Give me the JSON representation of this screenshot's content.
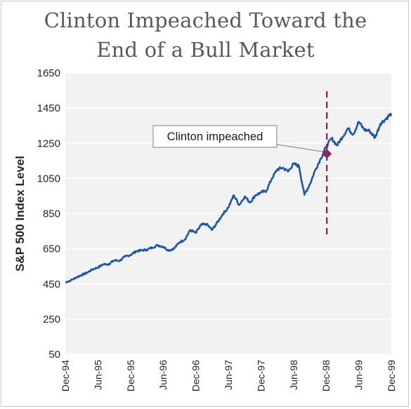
{
  "title_lines": [
    "Clinton Impeached Toward the",
    "End of a Bull Market"
  ],
  "colors": {
    "line": "#1f57a6",
    "plot_bg": "#f2f2f2",
    "grid": "#ffffff",
    "event_line": "#8b1a4a",
    "marker": "#8b2b5c",
    "title": "#595959"
  },
  "chart_data": {
    "type": "line",
    "title": "Clinton Impeached Toward the End of a Bull Market",
    "ylabel": "S&P 500 Index Level",
    "xlabel": "",
    "ylim": [
      50,
      1650
    ],
    "yticks": [
      50,
      250,
      450,
      650,
      850,
      1050,
      1250,
      1450,
      1650
    ],
    "xticks": [
      "Dec-94",
      "Jun-95",
      "Dec-95",
      "Jun-96",
      "Dec-96",
      "Jun-97",
      "Dec-97",
      "Jun-98",
      "Dec-98",
      "Jun-99",
      "Dec-99"
    ],
    "grid": "horizontal",
    "series": [
      {
        "values": [
          [
            0,
            459
          ],
          [
            1,
            470
          ],
          [
            2,
            487
          ],
          [
            3,
            501
          ],
          [
            4,
            514
          ],
          [
            5,
            533
          ],
          [
            6,
            544
          ],
          [
            7,
            562
          ],
          [
            8,
            563
          ],
          [
            9,
            584
          ],
          [
            10,
            582
          ],
          [
            11,
            606
          ],
          [
            12,
            615
          ],
          [
            13,
            636
          ],
          [
            14,
            641
          ],
          [
            15,
            645
          ],
          [
            16,
            657
          ],
          [
            17,
            670
          ],
          [
            18,
            662
          ],
          [
            19,
            641
          ],
          [
            20,
            651
          ],
          [
            21,
            687
          ],
          [
            22,
            703
          ],
          [
            23,
            757
          ],
          [
            24,
            740
          ],
          [
            25,
            786
          ],
          [
            26,
            790
          ],
          [
            27,
            757
          ],
          [
            28,
            801
          ],
          [
            29,
            848
          ],
          [
            30,
            885
          ],
          [
            31,
            955
          ],
          [
            32,
            899
          ],
          [
            33,
            947
          ],
          [
            34,
            914
          ],
          [
            35,
            955
          ],
          [
            36,
            970
          ],
          [
            37,
            980
          ],
          [
            38,
            1049
          ],
          [
            39,
            1101
          ],
          [
            40,
            1111
          ],
          [
            41,
            1090
          ],
          [
            42,
            1133
          ],
          [
            43,
            1120
          ],
          [
            44,
            957
          ],
          [
            45,
            1017
          ],
          [
            46,
            1098
          ],
          [
            47,
            1163
          ],
          [
            48,
            1229
          ],
          [
            49,
            1279
          ],
          [
            50,
            1238
          ],
          [
            51,
            1286
          ],
          [
            52,
            1335
          ],
          [
            53,
            1301
          ],
          [
            54,
            1372
          ],
          [
            55,
            1328
          ],
          [
            56,
            1320
          ],
          [
            57,
            1282
          ],
          [
            58,
            1362
          ],
          [
            59,
            1389
          ],
          [
            60,
            1420
          ]
        ]
      }
    ],
    "annotation": {
      "text": "Clinton impeached",
      "event_label": "Dec-98",
      "value": 1190
    }
  }
}
